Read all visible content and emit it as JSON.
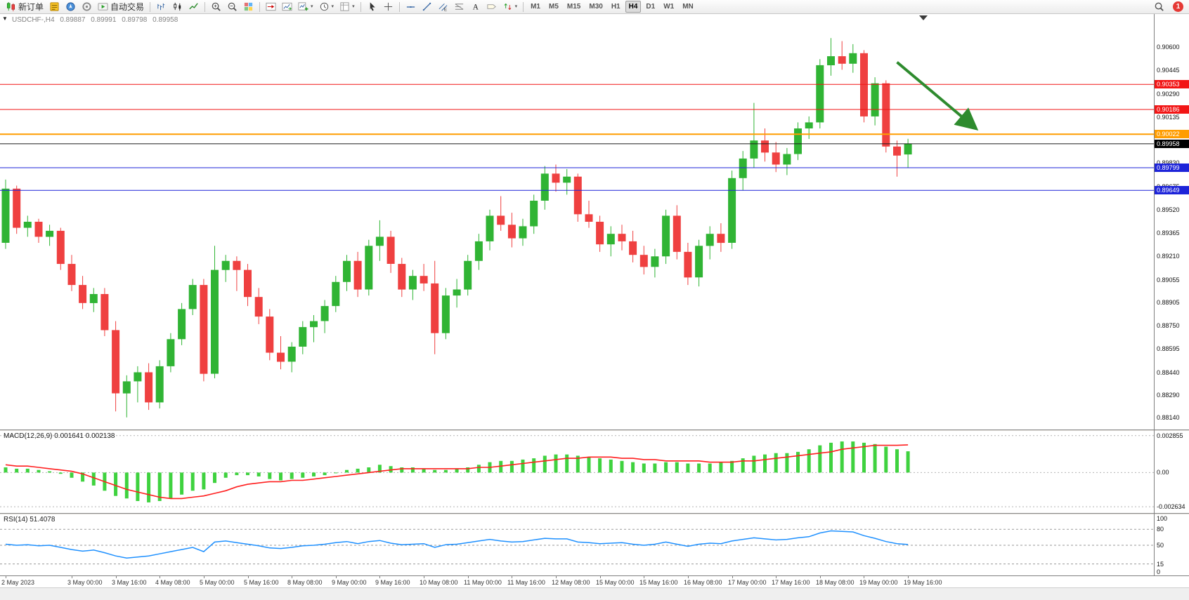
{
  "toolbar": {
    "new_order_label": "新订单",
    "autotrading_label": "自动交易",
    "timeframes": [
      "M1",
      "M5",
      "M15",
      "M30",
      "H1",
      "H4",
      "D1",
      "W1",
      "MN"
    ],
    "active_timeframe": "H4",
    "notification_count": "1",
    "items": [
      {
        "name": "new-order-button",
        "icon": "new-order-icon",
        "label": "新订单"
      },
      {
        "name": "market-watch-button",
        "icon": "market-watch-icon"
      },
      {
        "name": "navigator-button",
        "icon": "navigator-icon"
      },
      {
        "name": "terminal-button",
        "icon": "terminal-icon"
      },
      {
        "name": "autotrading-button",
        "icon": "autotrading-icon",
        "label": "自动交易"
      },
      {
        "sep": true
      },
      {
        "name": "bar-chart-button",
        "icon": "bar-chart-icon"
      },
      {
        "name": "candlestick-button",
        "icon": "candlestick-icon"
      },
      {
        "name": "line-chart-button",
        "icon": "line-chart-icon"
      },
      {
        "sep": true
      },
      {
        "name": "zoom-in-button",
        "icon": "zoom-in-icon"
      },
      {
        "name": "zoom-out-button",
        "icon": "zoom-out-icon"
      },
      {
        "name": "tile-windows-button",
        "icon": "tile-windows-icon"
      },
      {
        "sep": true
      },
      {
        "name": "chart-shift-button",
        "icon": "chart-shift-icon"
      },
      {
        "name": "auto-scroll-button",
        "icon": "auto-scroll-icon"
      },
      {
        "name": "indicators-button",
        "icon": "indicators-icon",
        "dropdown": true
      },
      {
        "name": "periods-button",
        "icon": "periods-icon",
        "dropdown": true
      },
      {
        "name": "templates-button",
        "icon": "templates-icon",
        "dropdown": true
      },
      {
        "sep": true
      },
      {
        "name": "cursor-button",
        "icon": "cursor-icon"
      },
      {
        "name": "crosshair-button",
        "icon": "crosshair-icon"
      },
      {
        "sep": true
      },
      {
        "name": "horizontal-line-button",
        "icon": "hline-icon"
      },
      {
        "name": "trendline-button",
        "icon": "trendline-icon"
      },
      {
        "name": "channel-button",
        "icon": "channel-icon"
      },
      {
        "name": "fibonacci-button",
        "icon": "fibonacci-icon"
      },
      {
        "name": "text-button",
        "icon": "text-icon"
      },
      {
        "name": "label-button",
        "icon": "label-icon"
      },
      {
        "name": "arrows-button",
        "icon": "arrows-icon",
        "dropdown": true
      },
      {
        "sep": true
      }
    ]
  },
  "chart": {
    "symbol_period": "USDCHF-,H4",
    "open": "0.89887",
    "high": "0.89991",
    "low": "0.89798",
    "close": "0.89958",
    "collapse_glyph": "▼"
  },
  "chart_data": {
    "type": "candlestick",
    "symbol": "USDCHF-",
    "timeframe": "H4",
    "title": "USDCHF-,H4 0.89887 0.89991 0.89798 0.89958",
    "ylim": [
      0.8806,
      0.9082
    ],
    "up_color": "#30b434",
    "down_color": "#ef4040",
    "shift_marker_bar": 83.4,
    "price_axis_labels": [
      "0.90600",
      "0.90445",
      "0.90290",
      "0.90135",
      "0.89830",
      "0.89675",
      "0.89520",
      "0.89365",
      "0.89210",
      "0.89055",
      "0.88905",
      "0.88750",
      "0.88595",
      "0.88440",
      "0.88290",
      "0.88140"
    ],
    "hlines": [
      {
        "price": 0.90353,
        "label": "0.90353",
        "color": "#f21515",
        "width": 1
      },
      {
        "price": 0.90186,
        "label": "0.90186",
        "color": "#f21515",
        "width": 1
      },
      {
        "price": 0.90022,
        "label": "0.90022",
        "color": "#ff9d00",
        "width": 2
      },
      {
        "price": 0.89799,
        "label": "0.89799",
        "color": "#1d24d9",
        "width": 1
      },
      {
        "price": 0.89649,
        "label": "0.89649",
        "color": "#1d24d9",
        "width": 1
      }
    ],
    "bid_line": {
      "price": 0.89958,
      "label": "0.89958",
      "color": "#1a1a1a"
    },
    "arrow": {
      "from_bar": 81.0,
      "from_price": 0.905,
      "to_bar": 88.0,
      "to_price": 0.9007,
      "color": "#2e8b2e"
    },
    "time_labels": [
      {
        "i": 0,
        "t": "2 May 2023"
      },
      {
        "i": 6,
        "t": "3 May 00:00"
      },
      {
        "i": 10,
        "t": "3 May 16:00"
      },
      {
        "i": 14,
        "t": "4 May 08:00"
      },
      {
        "i": 18,
        "t": "5 May 00:00"
      },
      {
        "i": 22,
        "t": "5 May 16:00"
      },
      {
        "i": 26,
        "t": "8 May 08:00"
      },
      {
        "i": 30,
        "t": "9 May 00:00"
      },
      {
        "i": 34,
        "t": "9 May 16:00"
      },
      {
        "i": 38,
        "t": "10 May 08:00"
      },
      {
        "i": 42,
        "t": "11 May 00:00"
      },
      {
        "i": 46,
        "t": "11 May 16:00"
      },
      {
        "i": 50,
        "t": "12 May 08:00"
      },
      {
        "i": 54,
        "t": "15 May 00:00"
      },
      {
        "i": 58,
        "t": "15 May 16:00"
      },
      {
        "i": 62,
        "t": "16 May 08:00"
      },
      {
        "i": 66,
        "t": "17 May 00:00"
      },
      {
        "i": 70,
        "t": "17 May 16:00"
      },
      {
        "i": 74,
        "t": "18 May 08:00"
      },
      {
        "i": 78,
        "t": "19 May 00:00"
      },
      {
        "i": 82,
        "t": "19 May 16:00"
      }
    ],
    "candles": [
      [
        0.893,
        0.8972,
        0.8926,
        0.8966
      ],
      [
        0.8966,
        0.8968,
        0.8936,
        0.894
      ],
      [
        0.894,
        0.8948,
        0.8934,
        0.8944
      ],
      [
        0.8944,
        0.8946,
        0.893,
        0.8934
      ],
      [
        0.8934,
        0.8942,
        0.8928,
        0.8938
      ],
      [
        0.8938,
        0.894,
        0.8912,
        0.8916
      ],
      [
        0.8916,
        0.8922,
        0.8898,
        0.8902
      ],
      [
        0.8902,
        0.8908,
        0.8886,
        0.889
      ],
      [
        0.889,
        0.89,
        0.8884,
        0.8896
      ],
      [
        0.8896,
        0.89,
        0.8868,
        0.8872
      ],
      [
        0.8872,
        0.8878,
        0.8818,
        0.883
      ],
      [
        0.883,
        0.8842,
        0.8814,
        0.8838
      ],
      [
        0.8838,
        0.8848,
        0.8824,
        0.8844
      ],
      [
        0.8844,
        0.885,
        0.8819,
        0.8824
      ],
      [
        0.8824,
        0.8852,
        0.882,
        0.8848
      ],
      [
        0.8848,
        0.887,
        0.8844,
        0.8866
      ],
      [
        0.8866,
        0.889,
        0.8862,
        0.8886
      ],
      [
        0.8886,
        0.8906,
        0.8882,
        0.8902
      ],
      [
        0.8902,
        0.8906,
        0.8838,
        0.8843
      ],
      [
        0.8843,
        0.8928,
        0.884,
        0.8912
      ],
      [
        0.8912,
        0.8922,
        0.8904,
        0.8918
      ],
      [
        0.8918,
        0.8921,
        0.8898,
        0.8912
      ],
      [
        0.8912,
        0.8916,
        0.8888,
        0.8894
      ],
      [
        0.8894,
        0.89,
        0.8876,
        0.8881
      ],
      [
        0.8881,
        0.8886,
        0.8852,
        0.8857
      ],
      [
        0.8857,
        0.8868,
        0.8846,
        0.8851
      ],
      [
        0.8851,
        0.8864,
        0.8844,
        0.8861
      ],
      [
        0.8861,
        0.8878,
        0.8856,
        0.8874
      ],
      [
        0.8874,
        0.8882,
        0.8864,
        0.8878
      ],
      [
        0.8878,
        0.8892,
        0.887,
        0.8888
      ],
      [
        0.8888,
        0.8908,
        0.8884,
        0.8904
      ],
      [
        0.8904,
        0.8922,
        0.8898,
        0.8918
      ],
      [
        0.8918,
        0.8924,
        0.8894,
        0.8899
      ],
      [
        0.8899,
        0.8932,
        0.8895,
        0.8928
      ],
      [
        0.8928,
        0.8945,
        0.8918,
        0.8934
      ],
      [
        0.8934,
        0.8938,
        0.891,
        0.8916
      ],
      [
        0.8916,
        0.892,
        0.8894,
        0.8899
      ],
      [
        0.8899,
        0.8912,
        0.8892,
        0.8908
      ],
      [
        0.8908,
        0.8916,
        0.8898,
        0.8903
      ],
      [
        0.8903,
        0.8918,
        0.8856,
        0.887
      ],
      [
        0.887,
        0.89,
        0.8866,
        0.8895
      ],
      [
        0.8895,
        0.8906,
        0.8887,
        0.8899
      ],
      [
        0.8899,
        0.8922,
        0.8895,
        0.8918
      ],
      [
        0.8918,
        0.8936,
        0.8912,
        0.8931
      ],
      [
        0.8931,
        0.8952,
        0.8925,
        0.8948
      ],
      [
        0.8948,
        0.8961,
        0.8938,
        0.8942
      ],
      [
        0.8942,
        0.895,
        0.8927,
        0.8933
      ],
      [
        0.8933,
        0.8946,
        0.8928,
        0.8941
      ],
      [
        0.8941,
        0.8962,
        0.8936,
        0.8958
      ],
      [
        0.8958,
        0.8981,
        0.8952,
        0.8976
      ],
      [
        0.8976,
        0.8982,
        0.8964,
        0.897
      ],
      [
        0.897,
        0.8979,
        0.8962,
        0.8974
      ],
      [
        0.8974,
        0.8976,
        0.8944,
        0.8949
      ],
      [
        0.8949,
        0.8958,
        0.894,
        0.8944
      ],
      [
        0.8944,
        0.8948,
        0.8924,
        0.8929
      ],
      [
        0.8929,
        0.8941,
        0.8921,
        0.8936
      ],
      [
        0.8936,
        0.8942,
        0.8925,
        0.8931
      ],
      [
        0.8931,
        0.8938,
        0.8917,
        0.8922
      ],
      [
        0.8922,
        0.8928,
        0.8909,
        0.8914
      ],
      [
        0.8914,
        0.8926,
        0.8907,
        0.8921
      ],
      [
        0.8921,
        0.8952,
        0.8916,
        0.8948
      ],
      [
        0.8948,
        0.8955,
        0.8919,
        0.8924
      ],
      [
        0.8924,
        0.893,
        0.8902,
        0.8907
      ],
      [
        0.8907,
        0.8932,
        0.8901,
        0.8928
      ],
      [
        0.8928,
        0.8941,
        0.8919,
        0.8936
      ],
      [
        0.8936,
        0.8943,
        0.8924,
        0.893
      ],
      [
        0.893,
        0.8978,
        0.8926,
        0.8973
      ],
      [
        0.8973,
        0.8991,
        0.8965,
        0.8986
      ],
      [
        0.8986,
        0.9023,
        0.898,
        0.8998
      ],
      [
        0.8998,
        0.9006,
        0.8984,
        0.899
      ],
      [
        0.899,
        0.8997,
        0.8977,
        0.8982
      ],
      [
        0.8982,
        0.8993,
        0.8975,
        0.8989
      ],
      [
        0.8989,
        0.901,
        0.8985,
        0.9006
      ],
      [
        0.9006,
        0.9014,
        0.8999,
        0.901
      ],
      [
        0.901,
        0.9052,
        0.9006,
        0.9048
      ],
      [
        0.9048,
        0.9066,
        0.9041,
        0.9054
      ],
      [
        0.9054,
        0.9064,
        0.9045,
        0.9049
      ],
      [
        0.9049,
        0.9062,
        0.9043,
        0.9056
      ],
      [
        0.9056,
        0.9058,
        0.901,
        0.9014
      ],
      [
        0.9014,
        0.904,
        0.9008,
        0.9036
      ],
      [
        0.9036,
        0.9038,
        0.899,
        0.8994
      ],
      [
        0.8994,
        0.8998,
        0.8974,
        0.8988
      ],
      [
        0.89887,
        0.89991,
        0.89798,
        0.89958
      ]
    ],
    "indicators": [
      {
        "name": "MACD",
        "label_text": "MACD(12,26,9) 0.001641 0.002138",
        "ylim": [
          -0.0029,
          0.003
        ],
        "axis_labels": [
          "0.002855",
          "0.00",
          "-0.002634"
        ],
        "histogram_color": "#3fd23f",
        "signal_color": "#ff1f1f",
        "histogram": [
          0.0004,
          0.0003,
          0.0003,
          0.0002,
          0.0001,
          -0.0001,
          -0.0004,
          -0.0007,
          -0.001,
          -0.0014,
          -0.0018,
          -0.002,
          -0.0022,
          -0.0023,
          -0.0022,
          -0.002,
          -0.0017,
          -0.0014,
          -0.0013,
          -0.0008,
          -0.0004,
          -0.0002,
          -0.0002,
          -0.0003,
          -0.0005,
          -0.0006,
          -0.0005,
          -0.0004,
          -0.0003,
          -0.0002,
          0,
          0.0002,
          0.0003,
          0.0004,
          0.0006,
          0.0005,
          0.0004,
          0.0004,
          0.0003,
          0.0002,
          0.0002,
          0.0003,
          0.0004,
          0.0006,
          0.0008,
          0.0009,
          0.0009,
          0.001,
          0.0011,
          0.0013,
          0.0014,
          0.0014,
          0.0013,
          0.0012,
          0.0011,
          0.001,
          0.0009,
          0.0008,
          0.0007,
          0.0007,
          0.0008,
          0.0008,
          0.0007,
          0.0007,
          0.0007,
          0.0008,
          0.0009,
          0.0011,
          0.0013,
          0.0014,
          0.0015,
          0.0015,
          0.0016,
          0.0018,
          0.0021,
          0.0023,
          0.0024,
          0.0024,
          0.0023,
          0.0022,
          0.002,
          0.0018,
          0.001641
        ],
        "signal": [
          0.0006,
          0.0005,
          0.0005,
          0.0004,
          0.0003,
          0.0002,
          0.0001,
          -0.0001,
          -0.0004,
          -0.0007,
          -0.001,
          -0.0013,
          -0.0015,
          -0.0017,
          -0.0019,
          -0.002,
          -0.002,
          -0.0019,
          -0.0018,
          -0.0016,
          -0.0014,
          -0.0011,
          -0.0009,
          -0.0008,
          -0.0007,
          -0.0007,
          -0.0006,
          -0.0006,
          -0.0005,
          -0.0004,
          -0.0003,
          -0.0002,
          -0.0001,
          0,
          0.0001,
          0.0002,
          0.0003,
          0.0003,
          0.0003,
          0.0003,
          0.0003,
          0.0003,
          0.0003,
          0.0004,
          0.0004,
          0.0005,
          0.0006,
          0.0007,
          0.0008,
          0.0009,
          0.001,
          0.0011,
          0.0011,
          0.0012,
          0.0012,
          0.0012,
          0.0011,
          0.0011,
          0.001,
          0.001,
          0.0009,
          0.0009,
          0.0009,
          0.0009,
          0.0008,
          0.0008,
          0.0008,
          0.0009,
          0.0009,
          0.001,
          0.0011,
          0.0012,
          0.0013,
          0.0014,
          0.0015,
          0.0016,
          0.0018,
          0.0019,
          0.002,
          0.0021,
          0.0021,
          0.0021,
          0.002138
        ]
      },
      {
        "name": "RSI",
        "label_text": "RSI(14) 51.4078",
        "ylim": [
          0,
          100
        ],
        "levels": [
          80,
          50,
          15
        ],
        "axis_labels": [
          "100",
          "80",
          "50",
          "15",
          "0"
        ],
        "line_color": "#1e90ff",
        "values": [
          52,
          50,
          51,
          49,
          50,
          46,
          42,
          39,
          41,
          36,
          30,
          26,
          28,
          30,
          34,
          38,
          42,
          46,
          38,
          56,
          58,
          55,
          52,
          49,
          45,
          44,
          46,
          49,
          50,
          52,
          55,
          57,
          53,
          57,
          59,
          54,
          51,
          52,
          53,
          46,
          51,
          52,
          55,
          58,
          61,
          58,
          56,
          57,
          60,
          63,
          62,
          62,
          56,
          55,
          53,
          54,
          55,
          52,
          50,
          52,
          56,
          52,
          48,
          52,
          54,
          53,
          58,
          61,
          64,
          62,
          60,
          61,
          64,
          66,
          73,
          77,
          76,
          75,
          68,
          63,
          57,
          53,
          51.4078
        ]
      }
    ]
  }
}
